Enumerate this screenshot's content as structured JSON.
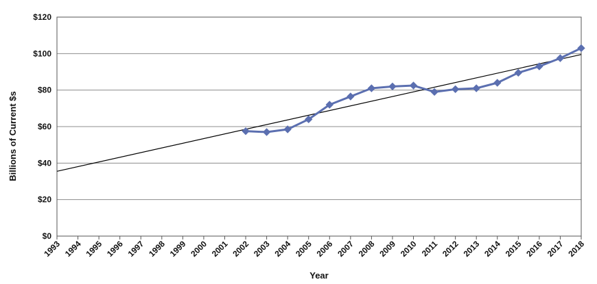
{
  "chart_data": {
    "type": "line",
    "xlabel": "Year",
    "ylabel": "Billions of Current $s",
    "x_categories": [
      "1993",
      "1994",
      "1995",
      "1996",
      "1997",
      "1998",
      "1999",
      "2000",
      "2001",
      "2002",
      "2003",
      "2004",
      "2005",
      "2006",
      "2007",
      "2008",
      "2009",
      "2010",
      "2011",
      "2012",
      "2013",
      "2014",
      "2015",
      "2016",
      "2017",
      "2018"
    ],
    "ylim": [
      0,
      120
    ],
    "y_ticks": [
      {
        "value": 0,
        "label": "$0"
      },
      {
        "value": 20,
        "label": "$20"
      },
      {
        "value": 40,
        "label": "$40"
      },
      {
        "value": 60,
        "label": "$60"
      },
      {
        "value": 80,
        "label": "$80"
      },
      {
        "value": 100,
        "label": "$100"
      },
      {
        "value": 120,
        "label": "$120"
      }
    ],
    "grid": "horizontal",
    "legend": "none",
    "series": [
      {
        "x": [
          "2002",
          "2003",
          "2004",
          "2005",
          "2006",
          "2007",
          "2008",
          "2009",
          "2010",
          "2011",
          "2012",
          "2013",
          "2014",
          "2015",
          "2016",
          "2017",
          "2018"
        ],
        "values": [
          57.5,
          57.0,
          58.5,
          64.0,
          72.0,
          76.5,
          81.0,
          82.0,
          82.5,
          79.0,
          80.5,
          81.0,
          84.0,
          89.5,
          93.0,
          97.5,
          103.0
        ],
        "color": "#5b6fb0",
        "marker": "diamond"
      }
    ],
    "trendline": {
      "kind": "linear",
      "color": "#000000",
      "start": {
        "x": "1993",
        "y": 35.5
      },
      "end": {
        "x": "2018",
        "y": 99.5
      }
    }
  }
}
